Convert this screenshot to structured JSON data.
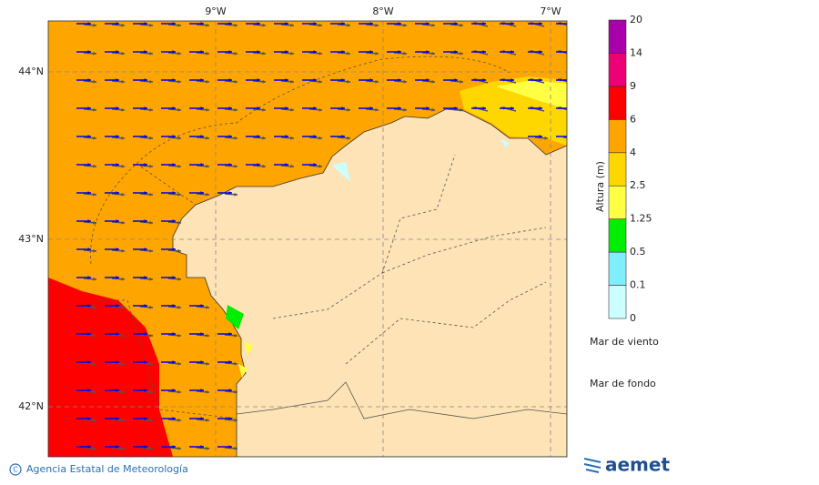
{
  "map": {
    "lon_labels": [
      "9°W",
      "8°W",
      "7°W"
    ],
    "lat_labels": [
      "44°N",
      "43°N",
      "42°N"
    ]
  },
  "colorbar": {
    "title": "Altura (m)",
    "levels": [
      0,
      0.1,
      0.5,
      1.25,
      2.5,
      4,
      6,
      9,
      14,
      20
    ],
    "colors": [
      "#ccffff",
      "#80eeff",
      "#00ee00",
      "#ffff44",
      "#ffd700",
      "#ffa500",
      "#ff0000",
      "#ee0077",
      "#aa00aa"
    ]
  },
  "legend": {
    "wind_sea": "Mar de viento",
    "wind_sea_color": "#0000ee",
    "swell": "Mar de fondo",
    "swell_color": "#555555"
  },
  "footer": {
    "credit": "Agencia Estatal de Meteorología",
    "logo": "aemet"
  }
}
